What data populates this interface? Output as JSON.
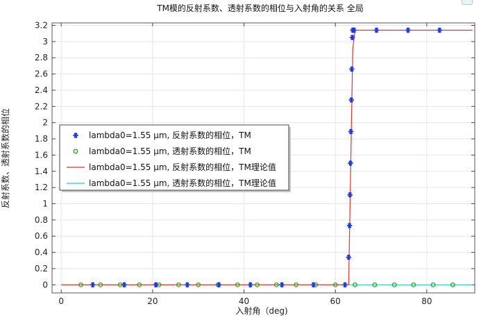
{
  "chart_data": {
    "type": "line",
    "title": "TM模的反射系数、透射系数的相位与入射角的关系   全局",
    "xlabel": "入射角（deg)",
    "ylabel": "反射系数、透射系数的相位",
    "xlim": [
      -2,
      90.5
    ],
    "ylim": [
      -0.1,
      3.23
    ],
    "xticks": [
      0,
      20,
      40,
      60,
      80
    ],
    "yticks": [
      0,
      0.2,
      0.4,
      0.6,
      0.8,
      1,
      1.2,
      1.4,
      1.6,
      1.8,
      2,
      2.2,
      2.4,
      2.6,
      2.8,
      3,
      3.2
    ],
    "ytick_labels": [
      "0",
      "0.2",
      "0.4",
      "0.6",
      "0.8",
      "1",
      "1.2",
      "1.4",
      "1.6",
      "1.8",
      "2",
      "2.2",
      "2.4",
      "2.6",
      "2.8",
      "3",
      "3.2"
    ],
    "grid": true,
    "legend_position": "center-left",
    "series": [
      {
        "name": "lambda0=1.55 µm, 反射系数的相位，TM",
        "kind": "marker-star",
        "color": "#1f3bd6",
        "x": [
          6.9,
          13.8,
          20.7,
          27.6,
          34.5,
          41.4,
          48.3,
          55.2,
          62.1,
          62.9,
          63.1,
          63.2,
          63.3,
          63.4,
          63.5,
          63.6,
          63.7,
          63.8,
          63.9,
          64.1,
          69.0,
          75.9,
          82.8
        ],
        "y": [
          0,
          0,
          0,
          0,
          0,
          0,
          0,
          0,
          0,
          0.34,
          0.73,
          1.11,
          1.5,
          1.89,
          2.28,
          2.66,
          3.05,
          3.14,
          3.14,
          3.14,
          3.14,
          3.14,
          3.14
        ]
      },
      {
        "name": "lambda0=1.55 µm, 透射系数的相位，TM",
        "kind": "marker-circle",
        "color": "#2aa52a",
        "x": [
          4.3,
          8.6,
          12.9,
          17.1,
          21.4,
          25.7,
          30.0,
          34.3,
          38.6,
          42.9,
          47.1,
          51.4,
          55.7,
          60.0,
          64.3,
          68.6,
          72.9,
          77.1,
          81.4,
          85.7
        ],
        "y": [
          0,
          0,
          0,
          0,
          0,
          0,
          0,
          0,
          0,
          0,
          0,
          0,
          0,
          0,
          0,
          0,
          0,
          0,
          0,
          0
        ]
      },
      {
        "name": "lambda0=1.55 µm, 反射系数的相位，TM理论值",
        "kind": "line",
        "color": "#d9382f",
        "x": [
          0,
          62.9,
          63.0,
          63.8,
          64.3,
          90
        ],
        "y": [
          0,
          0,
          0.3,
          2.9,
          3.14,
          3.14
        ]
      },
      {
        "name": "lambda0=1.55 µm, 透射系数的相位，TM理论值",
        "kind": "line",
        "color": "#33ccbe",
        "x": [
          0,
          90
        ],
        "y": [
          0,
          0
        ]
      }
    ]
  }
}
